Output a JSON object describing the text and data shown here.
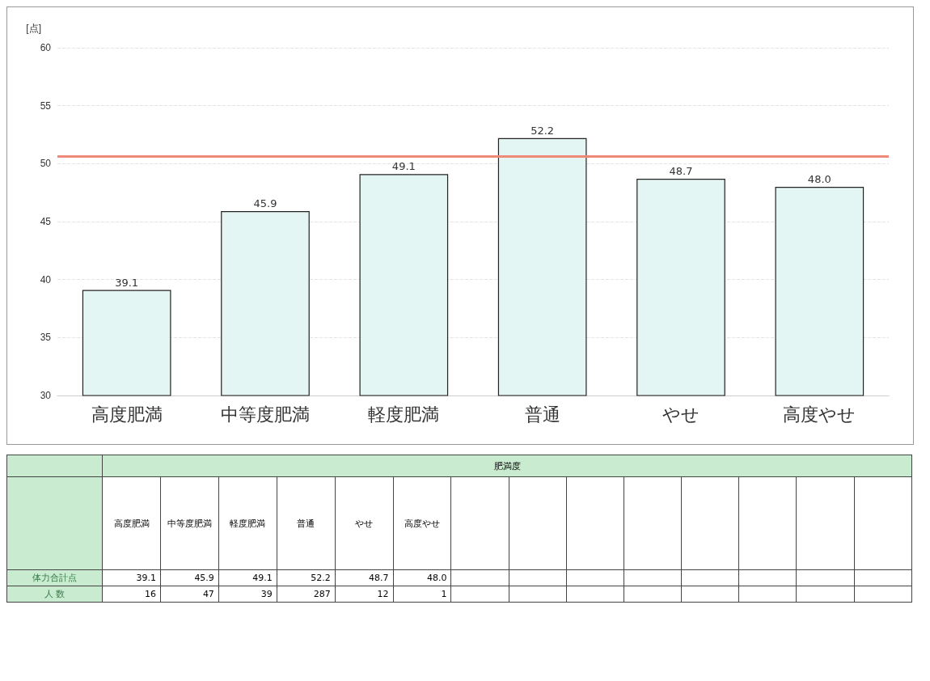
{
  "chart_data": [
    {
      "type": "bar",
      "ylabel": "[点]",
      "categories": [
        "高度肥満",
        "中等度肥満",
        "軽度肥満",
        "普通",
        "やせ",
        "高度やせ"
      ],
      "values": [
        39.1,
        45.9,
        49.1,
        52.2,
        48.7,
        48.0
      ],
      "value_labels": [
        "39.1",
        "45.9",
        "49.1",
        "52.2",
        "48.7",
        "48.0"
      ],
      "color": "#e4f6f3",
      "ylim": [
        30,
        60
      ],
      "yticks": [
        30,
        35,
        40,
        45,
        50,
        55,
        60
      ],
      "grid": "y",
      "ref_lines": [
        {
          "axis": "y",
          "value": 50.6,
          "color": "#ee8877"
        }
      ]
    },
    {
      "type": "other",
      "title": "肥満度",
      "categories": [
        "高度肥満",
        "中等度肥満",
        "軽度肥満",
        "普通",
        "やせ",
        "高度やせ"
      ],
      "series": [
        {
          "name": "体力合計点",
          "values": [
            39.1,
            45.9,
            49.1,
            52.2,
            48.7,
            48.0
          ],
          "value_labels": [
            "39.1",
            "45.9",
            "49.1",
            "52.2",
            "48.7",
            "48.0"
          ]
        },
        {
          "name": "人 数",
          "values": [
            16,
            47,
            39,
            287,
            12,
            1
          ],
          "value_labels": [
            "16",
            "47",
            "39",
            "287",
            "12",
            "1"
          ]
        }
      ],
      "data_labels": true
    }
  ]
}
